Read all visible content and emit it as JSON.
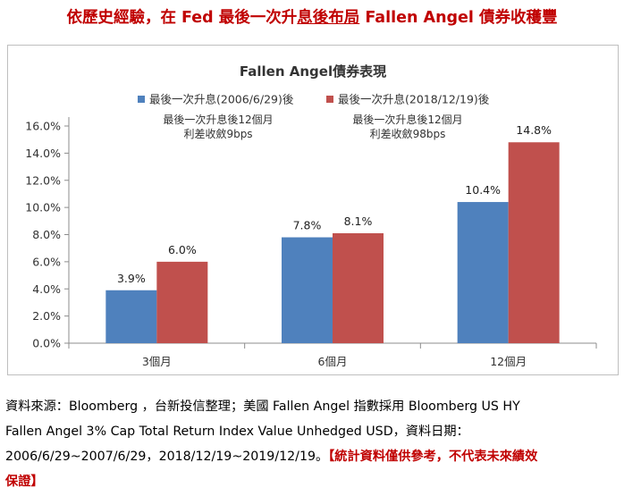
{
  "headline": {
    "part1": "依歷史經驗，在 Fed 最後一次升",
    "part2": "息後布局",
    "part3": " Fallen Angel 債券收穫豐"
  },
  "chart_data": {
    "type": "bar",
    "title": "Fallen Angel債券表現",
    "categories": [
      "3個月",
      "6個月",
      "12個月"
    ],
    "series": [
      {
        "name": "最後一次升息(2006/6/29)後",
        "color": "#4f81bd",
        "values": [
          3.9,
          7.8,
          10.4
        ],
        "labels": [
          "3.9%",
          "7.8%",
          "10.4%"
        ]
      },
      {
        "name": "最後一次升息(2018/12/19)後",
        "color": "#c0504d",
        "values": [
          6.0,
          8.1,
          14.8
        ],
        "labels": [
          "6.0%",
          "8.1%",
          "14.8%"
        ]
      }
    ],
    "yticks": [
      "0.0%",
      "2.0%",
      "4.0%",
      "6.0%",
      "8.0%",
      "10.0%",
      "12.0%",
      "14.0%",
      "16.0%"
    ],
    "ylim": [
      0,
      16
    ],
    "legend_position": "top",
    "grid": false,
    "annotations": [
      {
        "line1": "最後一次升息後12個月",
        "line2": "利差收斂9bps"
      },
      {
        "line1": "最後一次升息後12個月",
        "line2": "利差收斂98bps"
      }
    ]
  },
  "footnote": {
    "line1": "資料來源：Bloomberg  ，台新投信整理；美國  Fallen Angel  指數採用  Bloomberg US HY",
    "line2": "Fallen Angel 3% Cap Total Return Index Value Unhedged USD，資料日期：",
    "line3": "2006/6/29~2007/6/29，2018/12/19~2019/12/19。",
    "disclaimer_a": "【統計資料僅供參考，不代表未來績效",
    "disclaimer_b": "保證】"
  }
}
